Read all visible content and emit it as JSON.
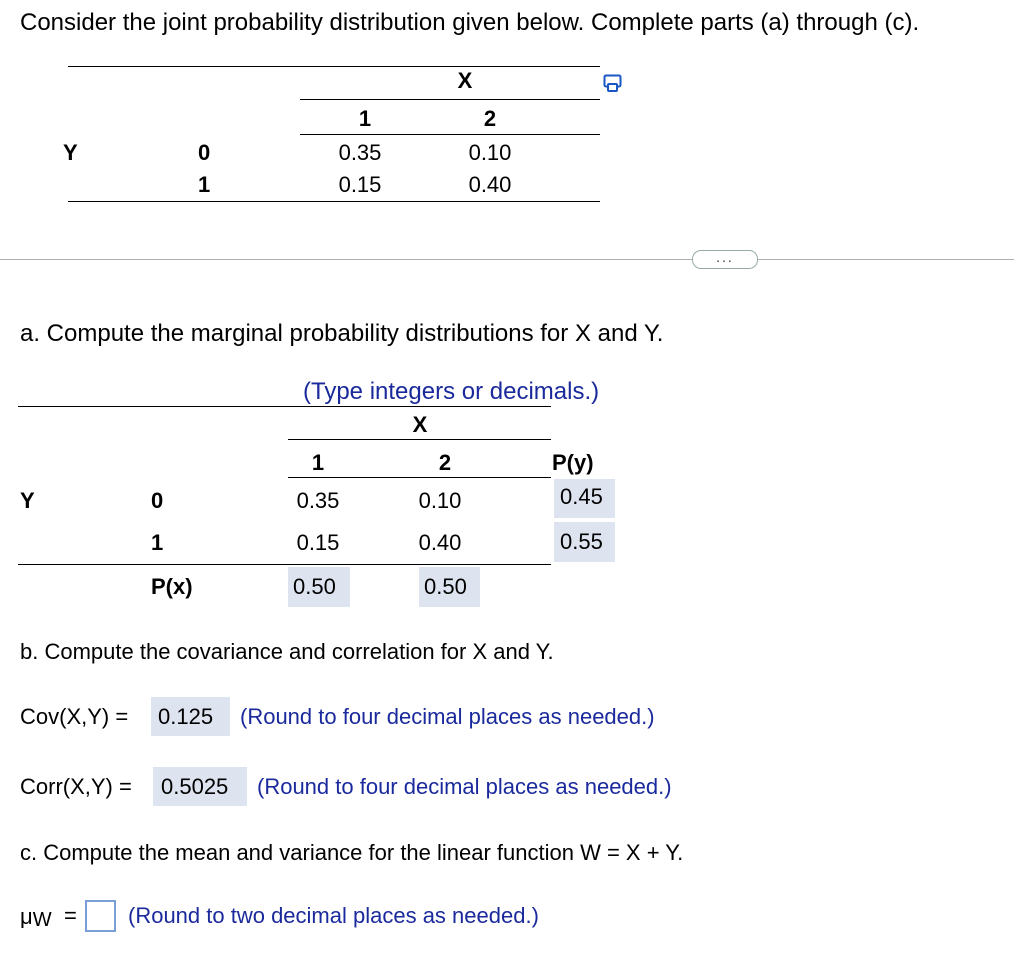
{
  "intro": "Consider the joint probability distribution given below. Complete parts (a) through (c).",
  "table1": {
    "x_header": "X",
    "x_values": [
      "1",
      "2"
    ],
    "y_header": "Y",
    "y_values": [
      "0",
      "1"
    ],
    "cells": [
      [
        "0.35",
        "0.10"
      ],
      [
        "0.15",
        "0.40"
      ]
    ]
  },
  "more_button": "...",
  "part_a": {
    "prompt": "a. Compute the marginal probability distributions for X and Y.",
    "hint": "(Type integers or decimals.)",
    "x_header": "X",
    "x_values": [
      "1",
      "2"
    ],
    "py_header": "P(y)",
    "y_header": "Y",
    "y_values": [
      "0",
      "1"
    ],
    "cells": [
      [
        "0.35",
        "0.10"
      ],
      [
        "0.15",
        "0.40"
      ]
    ],
    "py_values": [
      "0.45",
      "0.55"
    ],
    "px_label": "P(x)",
    "px_values": [
      "0.50",
      "0.50"
    ]
  },
  "part_b": {
    "prompt": "b. Compute the covariance and correlation for X and Y.",
    "cov_label": "Cov(X,Y) =",
    "cov_value": "0.125",
    "cov_hint": "(Round to four decimal places as needed.)",
    "corr_label": "Corr(X,Y) =",
    "corr_value": "0.5025",
    "corr_hint": "(Round to four decimal places as needed.)"
  },
  "part_c": {
    "prompt": "c. Compute the mean and variance for the linear function W = X + Y.",
    "mu_symbol": "μ",
    "mu_sub": "W",
    "equals": "=",
    "mu_value": "",
    "mu_hint": "(Round to two decimal places as needed.)"
  },
  "colors": {
    "hint_blue": "#1a2a9c",
    "answer_bg": "#dde4f0"
  }
}
